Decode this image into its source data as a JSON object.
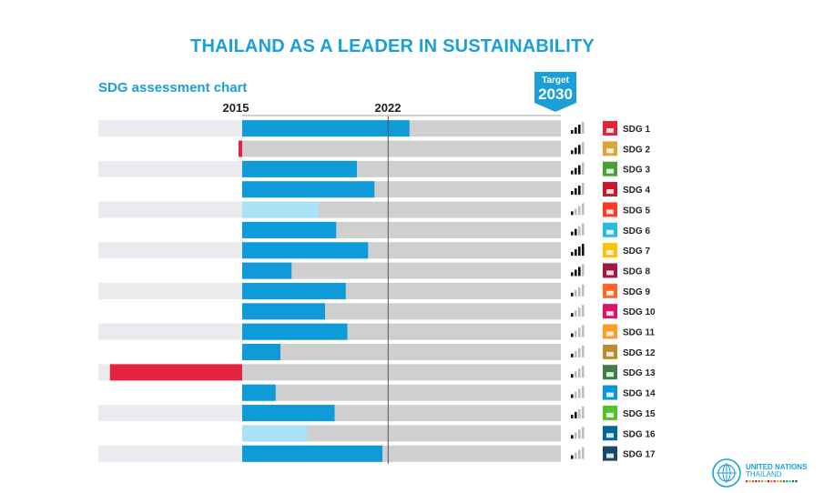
{
  "page": {
    "title": "THAILAND AS A LEADER IN SUSTAINABILITY",
    "subtitle": "SDG assessment chart",
    "target_label": "Target",
    "target_year": "2030",
    "logo_line1": "UNITED NATIONS",
    "logo_line2": "THAILAND"
  },
  "colors": {
    "accent": "#1a9fd9",
    "progress": "#0f9bd7",
    "progress_light": "#a9e1f7",
    "regression": "#e4233e",
    "remaining": "#cfcfcf",
    "row_shade": "#e9ebef"
  },
  "chart_data": {
    "type": "bar",
    "subtype": "horizontal progress bars",
    "title": "SDG assessment chart",
    "x_axis_ticks": [
      "2015",
      "2022"
    ],
    "target_label": "Target 2030",
    "xlim_progress_fraction": [
      -0.42,
      1.0
    ],
    "categories": [
      "SDG 1",
      "SDG 2",
      "SDG 3",
      "SDG 4",
      "SDG 5",
      "SDG 6",
      "SDG 7",
      "SDG 8",
      "SDG 9",
      "SDG 10",
      "SDG 11",
      "SDG 12",
      "SDG 13",
      "SDG 14",
      "SDG 15",
      "SDG 16",
      "SDG 17"
    ],
    "values": [
      0.525,
      -0.01,
      0.36,
      0.415,
      0.24,
      0.295,
      0.395,
      0.155,
      0.325,
      0.26,
      0.33,
      0.12,
      -0.415,
      0.105,
      0.29,
      0.205,
      0.44
    ],
    "bar_style": [
      "dark",
      "dark",
      "dark",
      "dark",
      "light",
      "dark",
      "dark",
      "dark",
      "dark",
      "dark",
      "dark",
      "dark",
      "dark",
      "dark",
      "dark",
      "light",
      "dark"
    ],
    "signal_bars": [
      3,
      3,
      3,
      3,
      1,
      2,
      4,
      3,
      1,
      1,
      1,
      1,
      1,
      1,
      2,
      1,
      1
    ],
    "sdg_icon_colors": [
      "#e5243b",
      "#dda63a",
      "#4c9f38",
      "#c5192d",
      "#ff3a21",
      "#26bde2",
      "#fcc30b",
      "#a21942",
      "#fd6925",
      "#dd1367",
      "#fd9d24",
      "#bf8b2e",
      "#3f7e44",
      "#0a97d9",
      "#56c02b",
      "#00689d",
      "#19486a"
    ],
    "year_2022_fraction": 0.458
  }
}
